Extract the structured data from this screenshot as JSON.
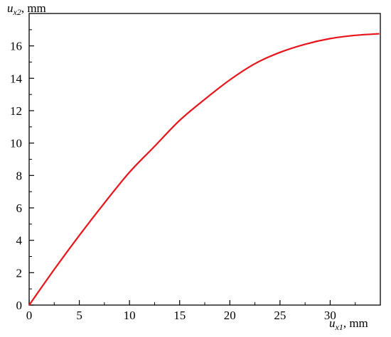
{
  "chart_data": {
    "type": "line",
    "xlabel": {
      "var": "u",
      "sub": "x1",
      "unit": ", mm"
    },
    "ylabel": {
      "var": "u",
      "sub": "x2",
      "unit": ", mm"
    },
    "xlim": [
      0,
      35
    ],
    "ylim": [
      0,
      18
    ],
    "xticks": [
      "0",
      "5",
      "10",
      "15",
      "20",
      "25",
      "30"
    ],
    "yticks": [
      "0",
      "2",
      "4",
      "6",
      "8",
      "10",
      "12",
      "14",
      "16"
    ],
    "grid": false,
    "series": [
      {
        "color": "#e8141c",
        "x": [
          0,
          2.5,
          5,
          7.5,
          10,
          12.5,
          15,
          17.5,
          20,
          22.5,
          25,
          27.5,
          30,
          32.5,
          34.9
        ],
        "y": [
          0,
          2.2,
          4.3,
          6.3,
          8.2,
          9.8,
          11.4,
          12.7,
          13.9,
          14.9,
          15.6,
          16.1,
          16.45,
          16.65,
          16.75
        ]
      }
    ]
  }
}
